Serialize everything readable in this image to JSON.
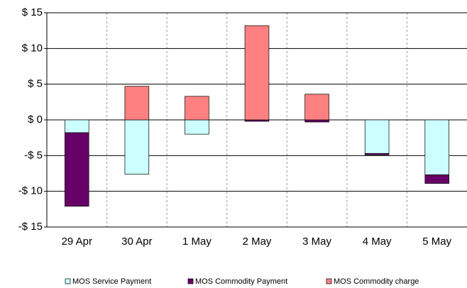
{
  "chart_data": {
    "type": "stacked_bar",
    "categories": [
      "29 Apr",
      "30 Apr",
      "1 May",
      "2 May",
      "3 May",
      "4 May",
      "5 May"
    ],
    "series": [
      {
        "name": "MOS Service Payment",
        "color": "#ccffff",
        "values": [
          -1.8,
          -7.6,
          -2.0,
          0,
          0,
          -4.7,
          -7.7
        ]
      },
      {
        "name": "MOS Commodity Payment",
        "color": "#660066",
        "values": [
          -10.3,
          0,
          0,
          -0.2,
          -0.3,
          -0.2,
          -1.2
        ]
      },
      {
        "name": "MOS Commodity charge",
        "color": "#ff8080",
        "values": [
          0,
          4.7,
          3.3,
          13.2,
          3.6,
          0,
          0
        ]
      }
    ],
    "ylim": [
      -15,
      15
    ],
    "yticks": [
      {
        "value": -15,
        "label": "-$ 15"
      },
      {
        "value": -10,
        "label": "-$ 10"
      },
      {
        "value": -5,
        "label": "-$ 5"
      },
      {
        "value": 0,
        "label": "$ 0"
      },
      {
        "value": 5,
        "label": "$ 5"
      },
      {
        "value": 10,
        "label": "$ 10"
      },
      {
        "value": 15,
        "label": "$ 15"
      }
    ],
    "grid": true,
    "legend": "bottom"
  }
}
